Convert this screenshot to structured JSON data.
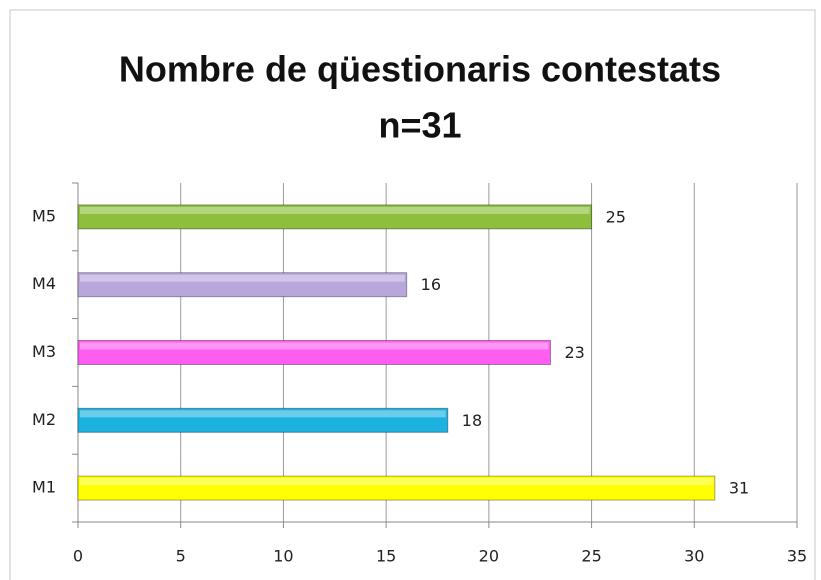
{
  "chart_data": {
    "type": "hbar",
    "title": [
      "Nombre de qüestionaris contestats",
      "n=31"
    ],
    "categories": [
      "M1",
      "M2",
      "M3",
      "M4",
      "M5"
    ],
    "values": [
      31,
      18,
      23,
      16,
      25
    ],
    "colors": [
      "#ffff00",
      "#1cb2e0",
      "#ff5cf0",
      "#b8a6dc",
      "#8dbf3c"
    ],
    "xlim": [
      0,
      35
    ],
    "xticks": [
      0,
      5,
      10,
      15,
      20,
      25,
      30,
      35
    ],
    "grid": true
  }
}
